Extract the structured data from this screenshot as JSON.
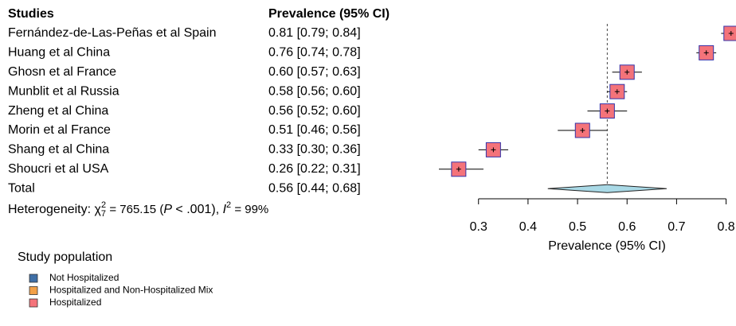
{
  "chart_data": {
    "type": "forest",
    "column_headers": [
      "Studies",
      "Prevalence (95% CI)"
    ],
    "categories": [
      "Fernández-de-Las-Peñas et al Spain",
      "Huang et al China",
      "Ghosn et al France",
      "Munblit et al Russia",
      "Zheng et al China",
      "Morin et al France",
      "Shang et al China",
      "Shoucri et al USA"
    ],
    "values": [
      0.81,
      0.76,
      0.6,
      0.58,
      0.56,
      0.51,
      0.33,
      0.26
    ],
    "ci_low": [
      0.79,
      0.74,
      0.57,
      0.56,
      0.52,
      0.46,
      0.3,
      0.22
    ],
    "ci_high": [
      0.84,
      0.78,
      0.63,
      0.6,
      0.6,
      0.56,
      0.36,
      0.31
    ],
    "value_labels": [
      "0.81 [0.79; 0.84]",
      "0.76 [0.74; 0.78]",
      "0.60 [0.57; 0.63]",
      "0.58 [0.56; 0.60]",
      "0.56 [0.52; 0.60]",
      "0.51 [0.46; 0.56]",
      "0.33 [0.30; 0.36]",
      "0.26 [0.22; 0.31]"
    ],
    "color": "#f4737a",
    "total": {
      "label": "Total",
      "value": 0.56,
      "ci_low": 0.44,
      "ci_high": 0.68,
      "value_label": "0.56 [0.44; 0.68]",
      "color": "#a9d9e6"
    },
    "heterogeneity": [
      "Heterogeneity: ",
      "χ",
      "7",
      "2",
      " = 765.15 (",
      "P",
      " < .001), ",
      "I",
      "2",
      " = 99%"
    ],
    "xlabel": "Prevalence (95% CI)",
    "xlim": [
      0.22,
      0.82
    ],
    "xticks": [
      0.3,
      0.4,
      0.5,
      0.6,
      0.7,
      0.8
    ],
    "legend": {
      "title": "Study population",
      "entries": [
        {
          "name": "Not Hospitalized",
          "color": "#3f6fa6"
        },
        {
          "name": "Hospitalized and Non-Hospitalized Mix",
          "color": "#f2a048"
        },
        {
          "name": "Hospitalized",
          "color": "#f4737a"
        }
      ]
    }
  }
}
